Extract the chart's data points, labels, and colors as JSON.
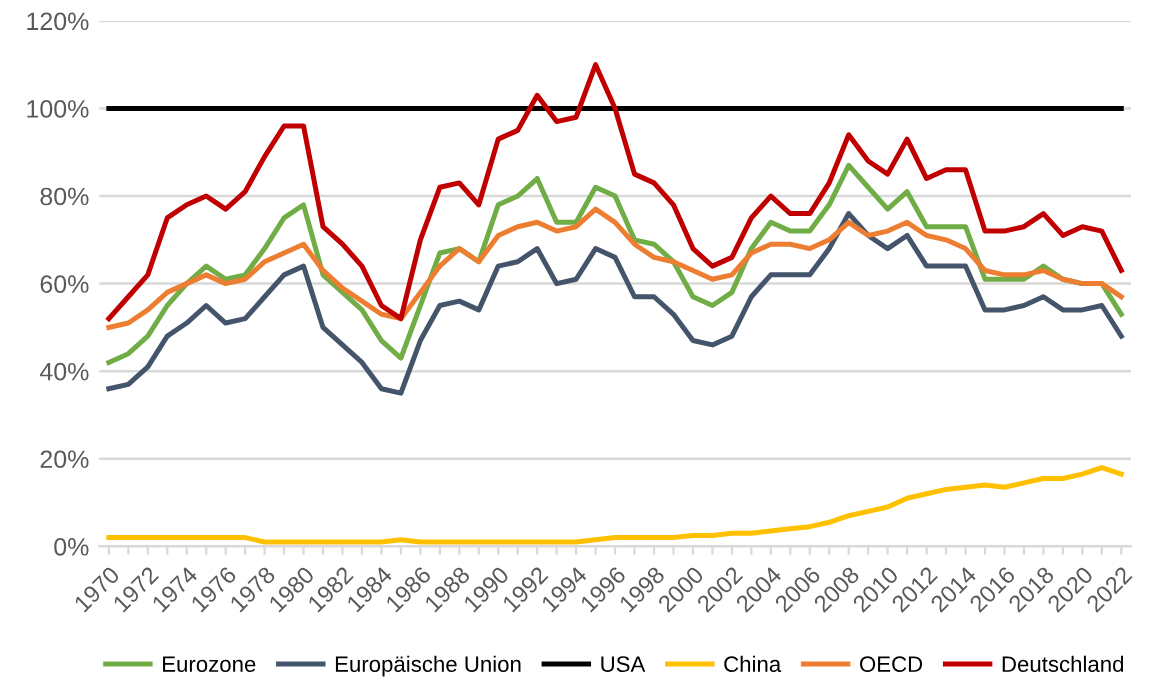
{
  "chart_data": {
    "type": "line",
    "categories": [
      "1970",
      null,
      "1972",
      null,
      "1974",
      null,
      "1976",
      null,
      "1978",
      null,
      "1980",
      null,
      "1982",
      null,
      "1984",
      null,
      "1986",
      null,
      "1988",
      null,
      "1990",
      null,
      "1992",
      null,
      "1994",
      null,
      "1996",
      null,
      "1998",
      null,
      "2000",
      null,
      "2002",
      null,
      "2004",
      null,
      "2006",
      null,
      "2008",
      null,
      "2010",
      null,
      "2012",
      null,
      "2014",
      null,
      "2016",
      null,
      "2018",
      null,
      "2020",
      null,
      "2022"
    ],
    "series": [
      {
        "name": "Eurozone",
        "color": "#70ad47",
        "values": [
          42,
          44,
          48,
          55,
          60,
          64,
          61,
          62,
          68,
          75,
          78,
          62,
          58,
          54,
          47,
          43,
          55,
          67,
          68,
          65,
          78,
          80,
          84,
          74,
          74,
          82,
          80,
          70,
          69,
          65,
          57,
          55,
          58,
          68,
          74,
          72,
          72,
          78,
          87,
          82,
          77,
          81,
          73,
          73,
          73,
          61,
          61,
          61,
          64,
          61,
          60,
          60,
          53
        ]
      },
      {
        "name": "Europäische Union",
        "color": "#44546a",
        "values": [
          36,
          37,
          41,
          48,
          51,
          55,
          51,
          52,
          57,
          62,
          64,
          50,
          46,
          42,
          36,
          35,
          47,
          55,
          56,
          54,
          64,
          65,
          68,
          60,
          61,
          68,
          66,
          57,
          57,
          53,
          47,
          46,
          48,
          57,
          62,
          62,
          62,
          68,
          76,
          71,
          68,
          71,
          64,
          64,
          64,
          54,
          54,
          55,
          57,
          54,
          54,
          55,
          48
        ]
      },
      {
        "name": "USA",
        "color": "#000000",
        "values": [
          100,
          100,
          100,
          100,
          100,
          100,
          100,
          100,
          100,
          100,
          100,
          100,
          100,
          100,
          100,
          100,
          100,
          100,
          100,
          100,
          100,
          100,
          100,
          100,
          100,
          100,
          100,
          100,
          100,
          100,
          100,
          100,
          100,
          100,
          100,
          100,
          100,
          100,
          100,
          100,
          100,
          100,
          100,
          100,
          100,
          100,
          100,
          100,
          100,
          100,
          100,
          100,
          100
        ]
      },
      {
        "name": "China",
        "color": "#ffc000",
        "values": [
          2,
          2,
          2,
          2,
          2,
          2,
          2,
          2,
          1,
          1,
          1,
          1,
          1,
          1,
          1,
          1.5,
          1,
          1,
          1,
          1,
          1,
          1,
          1,
          1,
          1,
          1.5,
          2,
          2,
          2,
          2,
          2.5,
          2.5,
          3,
          3,
          3.5,
          4,
          4.5,
          5.5,
          7,
          8,
          9,
          11,
          12,
          13,
          13.5,
          14,
          13.5,
          14.5,
          15.5,
          15.5,
          16.5,
          18,
          16.5
        ]
      },
      {
        "name": "OECD",
        "color": "#ed7d31",
        "values": [
          50,
          51,
          54,
          58,
          60,
          62,
          60,
          61,
          65,
          67,
          69,
          63,
          59,
          56,
          53,
          52,
          58,
          64,
          68,
          65,
          71,
          73,
          74,
          72,
          73,
          77,
          74,
          69,
          66,
          65,
          63,
          61,
          62,
          67,
          69,
          69,
          68,
          70,
          74,
          71,
          72,
          74,
          71,
          70,
          68,
          63,
          62,
          62,
          63,
          61,
          60,
          60,
          57
        ]
      },
      {
        "name": "Deutschland",
        "color": "#c00000",
        "values": [
          52,
          57,
          62,
          75,
          78,
          80,
          77,
          81,
          89,
          96,
          96,
          73,
          69,
          64,
          55,
          52,
          70,
          82,
          83,
          78,
          93,
          95,
          103,
          97,
          98,
          110,
          100,
          85,
          83,
          78,
          68,
          64,
          66,
          75,
          80,
          76,
          76,
          83,
          94,
          88,
          85,
          93,
          84,
          86,
          86,
          72,
          72,
          73,
          76,
          71,
          73,
          72,
          63
        ]
      }
    ],
    "ylim": [
      0,
      120
    ],
    "yticks": [
      {
        "value": 0,
        "label": "0%"
      },
      {
        "value": 20,
        "label": "20%"
      },
      {
        "value": 40,
        "label": "40%"
      },
      {
        "value": 60,
        "label": "60%"
      },
      {
        "value": 80,
        "label": "80%"
      },
      {
        "value": 100,
        "label": "100%"
      },
      {
        "value": 120,
        "label": "120%"
      }
    ],
    "grid": "y",
    "legend": "bottom"
  }
}
